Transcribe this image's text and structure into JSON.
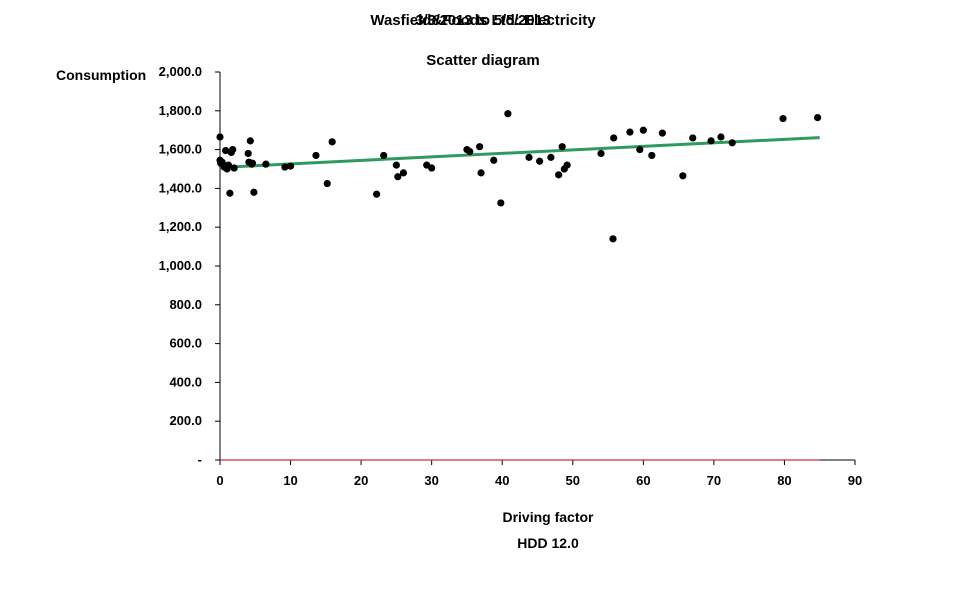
{
  "chart_data": {
    "type": "scatter",
    "title_lines": [
      "Wasfield&Foods Ltd: Electricity",
      "3/3/2013 to 5/5/2013"
    ],
    "subtitle": "Scatter diagram",
    "ylabel": "Consumption",
    "xlabel": "Driving factor",
    "xsublabel": "HDD 12.0",
    "xlim": [
      0,
      90
    ],
    "ylim": [
      0,
      2000
    ],
    "x_ticks": [
      0,
      10,
      20,
      30,
      40,
      50,
      60,
      70,
      80,
      90
    ],
    "x_tick_labels": [
      "0",
      "10",
      "20",
      "30",
      "40",
      "50",
      "60",
      "70",
      "80",
      "90"
    ],
    "y_ticks": [
      0,
      200,
      400,
      600,
      800,
      1000,
      1200,
      1400,
      1600,
      1800,
      2000
    ],
    "y_tick_labels": [
      "-",
      "200.0",
      "400.0",
      "600.0",
      "800.0",
      "1,000.0",
      "1,200.0",
      "1,400.0",
      "1,600.0",
      "1,800.0",
      "2,000.0"
    ],
    "trend_line": {
      "x": [
        0,
        85
      ],
      "y": [
        1508,
        1662
      ],
      "color": "#2e9a5e"
    },
    "baseline": {
      "x": [
        0,
        85
      ],
      "y": [
        0,
        0
      ],
      "color": "#c0392b"
    },
    "point_color": "#000000",
    "series": [
      {
        "x": [
          0.0,
          0.0,
          0.1,
          0.3,
          0.5,
          0.6,
          0.8,
          1.0,
          1.2,
          1.4,
          1.6,
          1.8,
          2.0,
          4.0,
          4.1,
          4.3,
          4.5,
          4.6,
          4.8,
          6.5,
          9.2,
          10.0,
          13.6,
          15.2,
          15.9,
          22.2,
          23.2,
          25.0,
          25.2,
          26.0,
          29.3,
          30.0,
          35.0,
          35.4,
          36.8,
          37.0,
          38.8,
          39.8,
          40.8,
          43.8,
          45.3,
          46.9,
          48.0,
          48.5,
          48.8,
          49.2,
          54.0,
          55.7,
          55.8,
          58.1,
          59.5,
          60.0,
          61.2,
          62.7,
          65.6,
          67.0,
          69.6,
          71.0,
          72.6,
          79.8,
          84.7
        ],
        "y": [
          1665,
          1545,
          1530,
          1535,
          1520,
          1510,
          1595,
          1500,
          1520,
          1375,
          1585,
          1600,
          1505,
          1580,
          1535,
          1645,
          1525,
          1530,
          1380,
          1525,
          1510,
          1515,
          1570,
          1425,
          1640,
          1370,
          1570,
          1520,
          1460,
          1480,
          1520,
          1505,
          1600,
          1590,
          1615,
          1480,
          1545,
          1325,
          1785,
          1560,
          1540,
          1560,
          1470,
          1615,
          1500,
          1520,
          1580,
          1140,
          1660,
          1690,
          1600,
          1700,
          1570,
          1685,
          1465,
          1660,
          1645,
          1665,
          1635,
          1760,
          1765
        ]
      }
    ]
  }
}
